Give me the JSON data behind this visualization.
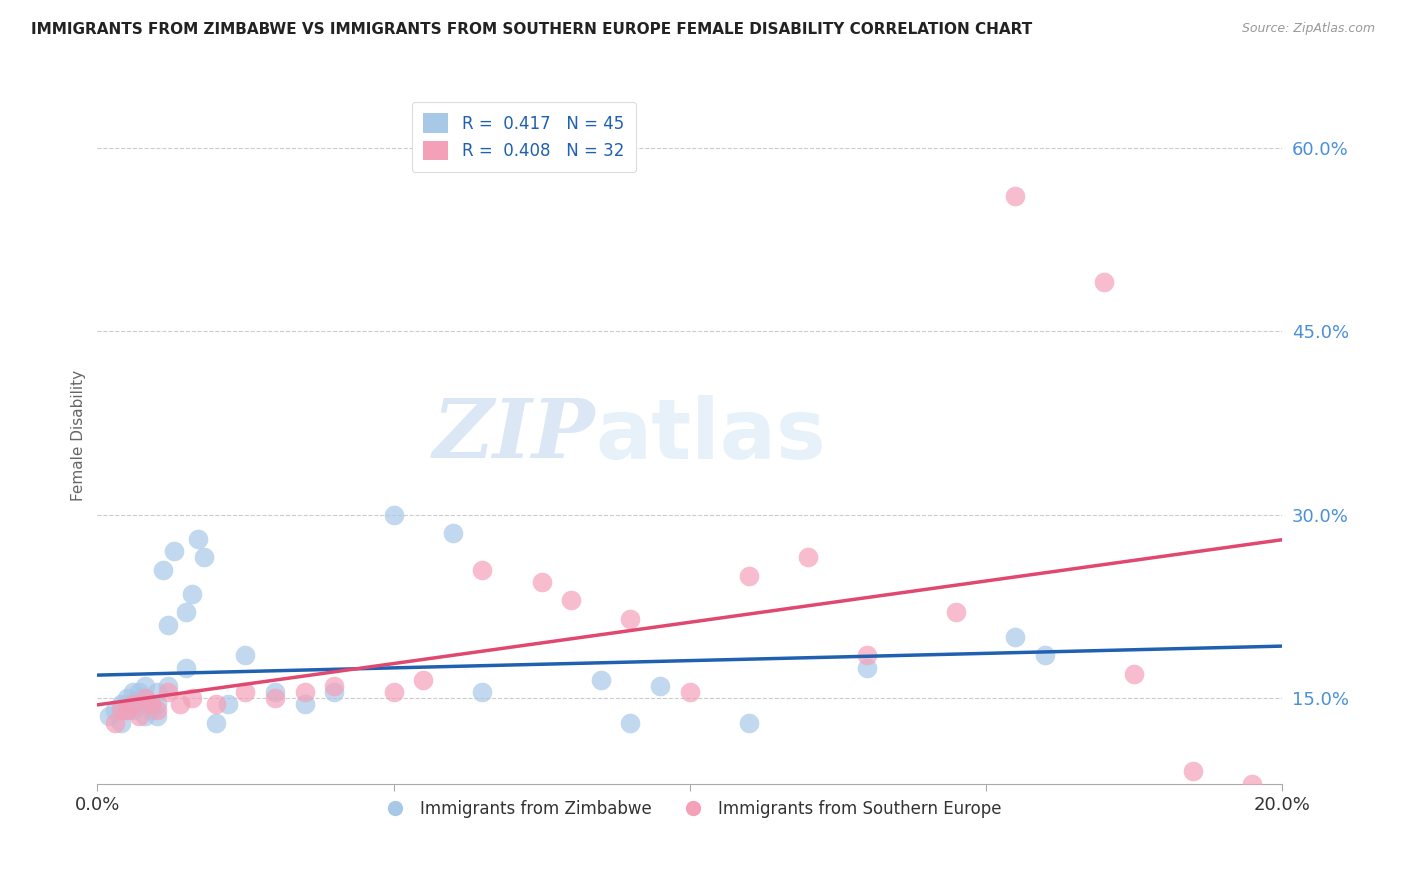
{
  "title": "IMMIGRANTS FROM ZIMBABWE VS IMMIGRANTS FROM SOUTHERN EUROPE FEMALE DISABILITY CORRELATION CHART",
  "source": "Source: ZipAtlas.com",
  "ylabel": "Female Disability",
  "xlim": [
    0.0,
    0.2
  ],
  "ylim": [
    0.08,
    0.65
  ],
  "yticks": [
    0.15,
    0.3,
    0.45,
    0.6
  ],
  "ytick_labels": [
    "15.0%",
    "30.0%",
    "45.0%",
    "60.0%"
  ],
  "xticks": [
    0.0,
    0.05,
    0.1,
    0.15,
    0.2
  ],
  "xtick_labels": [
    "0.0%",
    "",
    "",
    "",
    "20.0%"
  ],
  "blue_color": "#A8C8E8",
  "blue_line_color": "#2060B0",
  "pink_color": "#F4A0B8",
  "pink_line_color": "#E04870",
  "zimbabwe_x": [
    0.002,
    0.003,
    0.004,
    0.004,
    0.005,
    0.005,
    0.005,
    0.006,
    0.006,
    0.007,
    0.007,
    0.007,
    0.008,
    0.008,
    0.008,
    0.009,
    0.009,
    0.01,
    0.01,
    0.01,
    0.011,
    0.012,
    0.012,
    0.013,
    0.015,
    0.015,
    0.016,
    0.017,
    0.018,
    0.02,
    0.022,
    0.025,
    0.03,
    0.035,
    0.04,
    0.05,
    0.06,
    0.065,
    0.085,
    0.09,
    0.095,
    0.11,
    0.13,
    0.155,
    0.16
  ],
  "zimbabwe_y": [
    0.135,
    0.14,
    0.13,
    0.145,
    0.15,
    0.14,
    0.145,
    0.155,
    0.14,
    0.15,
    0.145,
    0.155,
    0.135,
    0.15,
    0.16,
    0.14,
    0.145,
    0.155,
    0.135,
    0.145,
    0.255,
    0.16,
    0.21,
    0.27,
    0.175,
    0.22,
    0.235,
    0.28,
    0.265,
    0.13,
    0.145,
    0.185,
    0.155,
    0.145,
    0.155,
    0.3,
    0.285,
    0.155,
    0.165,
    0.13,
    0.16,
    0.13,
    0.175,
    0.2,
    0.185
  ],
  "southern_europe_x": [
    0.003,
    0.004,
    0.005,
    0.006,
    0.007,
    0.008,
    0.009,
    0.01,
    0.012,
    0.014,
    0.016,
    0.02,
    0.025,
    0.03,
    0.035,
    0.04,
    0.05,
    0.055,
    0.065,
    0.075,
    0.08,
    0.09,
    0.1,
    0.11,
    0.12,
    0.13,
    0.145,
    0.155,
    0.17,
    0.175,
    0.185,
    0.195
  ],
  "southern_europe_y": [
    0.13,
    0.14,
    0.14,
    0.145,
    0.135,
    0.15,
    0.145,
    0.14,
    0.155,
    0.145,
    0.15,
    0.145,
    0.155,
    0.15,
    0.155,
    0.16,
    0.155,
    0.165,
    0.255,
    0.245,
    0.23,
    0.215,
    0.155,
    0.25,
    0.265,
    0.185,
    0.22,
    0.56,
    0.49,
    0.17,
    0.09,
    0.08
  ],
  "watermark_zip": "ZIP",
  "watermark_atlas": "atlas",
  "background_color": "#FFFFFF",
  "grid_color": "#CCCCCC"
}
